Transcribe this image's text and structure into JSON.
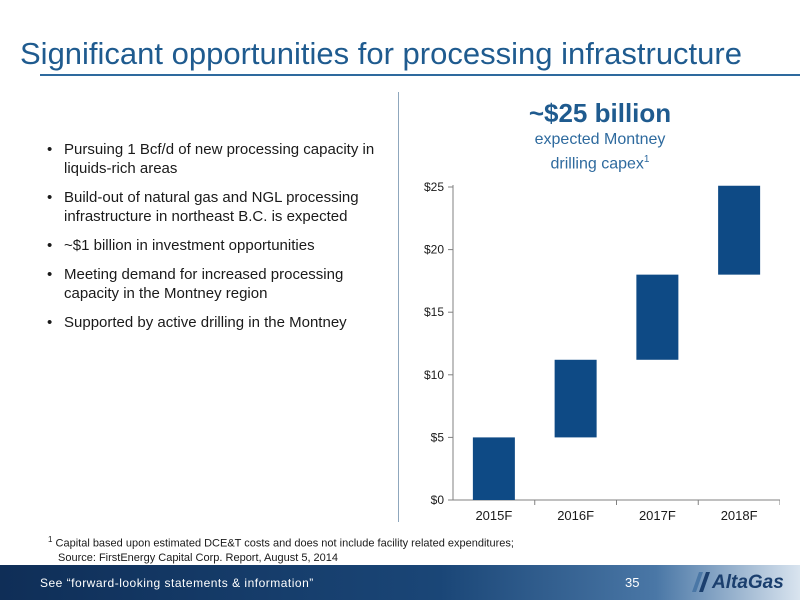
{
  "slide": {
    "title": "Significant opportunities for processing infrastructure",
    "bullets": [
      "Pursuing 1 Bcf/d of new processing capacity in liquids-rich areas",
      "Build-out of natural gas and NGL processing infrastructure in northeast B.C. is expected",
      "~$1 billion in investment opportunities",
      "Meeting demand for increased processing capacity in the Montney region",
      "Supported by active drilling in the Montney"
    ],
    "bullet_symbol": "•"
  },
  "callout": {
    "amount": "~$25 billion",
    "description": "expected Montney drilling capex",
    "footnote_ref": "1"
  },
  "chart_data": {
    "type": "bar",
    "subtype": "waterfall",
    "categories": [
      "2015F",
      "2016F",
      "2017F",
      "2018F"
    ],
    "values": [
      5,
      6.2,
      6.8,
      7.1
    ],
    "cumulative": [
      5,
      11.2,
      18,
      25.1
    ],
    "ylim": [
      0,
      25
    ],
    "yticks": [
      "$0",
      "$5",
      "$10",
      "$15",
      "$20",
      "$25"
    ],
    "ytick_values": [
      0,
      5,
      10,
      15,
      20,
      25
    ],
    "title": "",
    "xlabel": "",
    "ylabel": "",
    "grid": false,
    "bar_color": "#0e4a85"
  },
  "footnote": {
    "marker": "1",
    "text": "Capital based upon estimated DCE&T costs and does not include facility related expenditures;",
    "source": "Source: FirstEnergy Capital Corp. Report, August 5, 2014"
  },
  "footer": {
    "link_text": "See “forward-looking statements & information”",
    "page_number": "35",
    "logo_text": "AltaGas"
  }
}
